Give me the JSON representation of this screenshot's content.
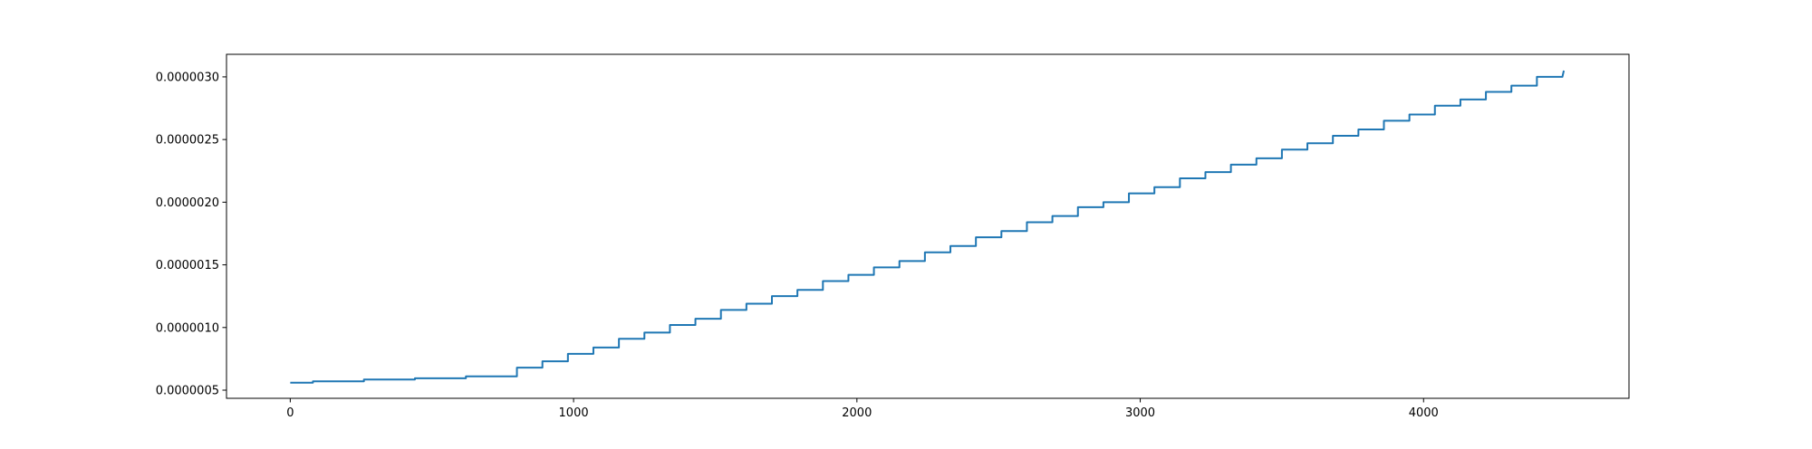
{
  "chart_data": {
    "type": "line",
    "x": [
      0,
      80,
      80,
      260,
      260,
      440,
      440,
      620,
      620,
      800,
      800,
      890,
      890,
      980,
      980,
      1070,
      1070,
      1160,
      1160,
      1250,
      1250,
      1340,
      1340,
      1430,
      1430,
      1520,
      1520,
      1610,
      1610,
      1700,
      1700,
      1790,
      1790,
      1880,
      1880,
      1970,
      1970,
      2060,
      2060,
      2150,
      2150,
      2240,
      2240,
      2330,
      2330,
      2420,
      2420,
      2510,
      2510,
      2600,
      2600,
      2690,
      2690,
      2780,
      2780,
      2870,
      2870,
      2960,
      2960,
      3050,
      3050,
      3140,
      3140,
      3230,
      3230,
      3320,
      3320,
      3410,
      3410,
      3500,
      3500,
      3590,
      3590,
      3680,
      3680,
      3770,
      3770,
      3860,
      3860,
      3950,
      3950,
      4040,
      4040,
      4130,
      4130,
      4220,
      4220,
      4310,
      4310,
      4400,
      4400,
      4490,
      4495
    ],
    "series": [
      {
        "color": "#1f77b4",
        "values": [
          5.6e-07,
          5.6e-07,
          5.7e-07,
          5.7e-07,
          5.85e-07,
          5.85e-07,
          5.95e-07,
          5.95e-07,
          6.1e-07,
          6.1e-07,
          6.8e-07,
          6.8e-07,
          7.3e-07,
          7.3e-07,
          7.9e-07,
          7.9e-07,
          8.4e-07,
          8.4e-07,
          9.1e-07,
          9.1e-07,
          9.6e-07,
          9.6e-07,
          1.02e-06,
          1.02e-06,
          1.07e-06,
          1.07e-06,
          1.14e-06,
          1.14e-06,
          1.19e-06,
          1.19e-06,
          1.25e-06,
          1.25e-06,
          1.3e-06,
          1.3e-06,
          1.37e-06,
          1.37e-06,
          1.42e-06,
          1.42e-06,
          1.48e-06,
          1.48e-06,
          1.53e-06,
          1.53e-06,
          1.6e-06,
          1.6e-06,
          1.65e-06,
          1.65e-06,
          1.72e-06,
          1.72e-06,
          1.77e-06,
          1.77e-06,
          1.84e-06,
          1.84e-06,
          1.89e-06,
          1.89e-06,
          1.96e-06,
          1.96e-06,
          2e-06,
          2e-06,
          2.07e-06,
          2.07e-06,
          2.12e-06,
          2.12e-06,
          2.19e-06,
          2.19e-06,
          2.24e-06,
          2.24e-06,
          2.3e-06,
          2.3e-06,
          2.35e-06,
          2.35e-06,
          2.42e-06,
          2.42e-06,
          2.47e-06,
          2.47e-06,
          2.53e-06,
          2.53e-06,
          2.58e-06,
          2.58e-06,
          2.65e-06,
          2.65e-06,
          2.7e-06,
          2.7e-06,
          2.77e-06,
          2.77e-06,
          2.82e-06,
          2.82e-06,
          2.88e-06,
          2.88e-06,
          2.93e-06,
          2.93e-06,
          3e-06,
          3e-06,
          3.05e-06
        ]
      }
    ],
    "xlim": [
      -225,
      4725
    ],
    "xticks": [
      0,
      1000,
      2000,
      3000,
      4000
    ],
    "ylim": [
      4.35e-07,
      3.18e-06
    ],
    "yticks": [
      {
        "value": 5e-07,
        "label": "0.0000005"
      },
      {
        "value": 1e-06,
        "label": "0.0000010"
      },
      {
        "value": 1.5e-06,
        "label": "0.0000015"
      },
      {
        "value": 2e-06,
        "label": "0.0000020"
      },
      {
        "value": 2.5e-06,
        "label": "0.0000025"
      },
      {
        "value": 3e-06,
        "label": "0.0000030"
      }
    ]
  }
}
